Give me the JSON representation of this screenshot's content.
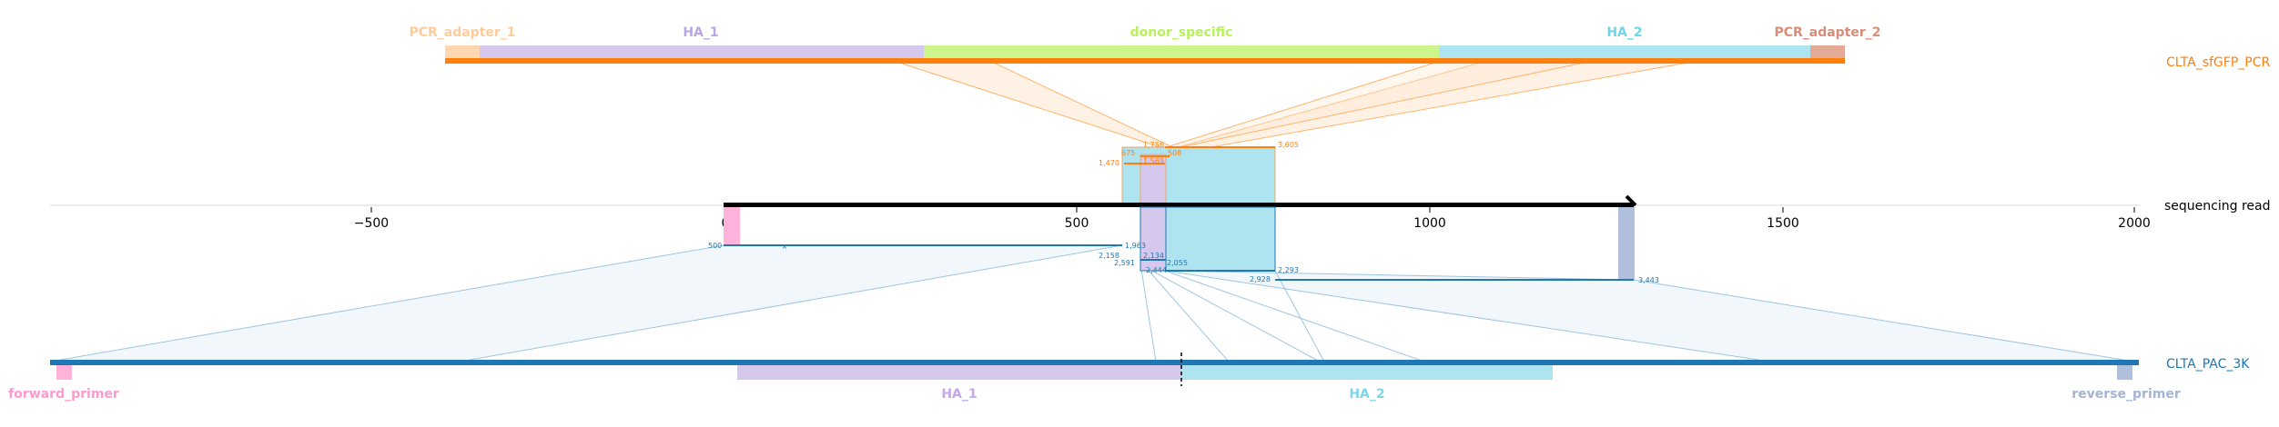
{
  "top_reference": {
    "name": "CLTA_sfGFP_PCR",
    "color": "#ff7f0e",
    "features": [
      {
        "label": "PCR_adapter_1",
        "color": "#ffd7b0",
        "text_color": "#ffcc99"
      },
      {
        "label": "HA_1",
        "color": "#d6c8ec",
        "text_color": "#b9a5e6"
      },
      {
        "label": "donor_specific",
        "color": "#ccf58c",
        "text_color": "#b7f25c"
      },
      {
        "label": "HA_2",
        "color": "#aee4f0",
        "text_color": "#6fd3ea"
      },
      {
        "label": "PCR_adapter_2",
        "color": "#e4aa96",
        "text_color": "#d98c77"
      }
    ]
  },
  "read": {
    "name": "sequencing read",
    "axis_ticks": [
      "−500",
      "0",
      "500",
      "1000",
      "1500",
      "2000"
    ]
  },
  "bottom_reference": {
    "name": "CLTA_PAC_3K",
    "color": "#1f77b4",
    "features": [
      {
        "label": "forward_primer",
        "color": "#ffb3da",
        "text_color": "#ff99cc"
      },
      {
        "label": "HA_1",
        "color": "#d6c8ec",
        "text_color": "#c2a8e8"
      },
      {
        "label": "HA_2",
        "color": "#aee4f0",
        "text_color": "#7fd5ea"
      },
      {
        "label": "reverse_primer",
        "color": "#b0c0dc",
        "text_color": "#a3b4d6"
      }
    ]
  },
  "alignment_labels": {
    "top": [
      "1,756",
      "675",
      "508",
      "3,605",
      "1,470",
      "1,569"
    ],
    "bottom": [
      "500",
      "1,963",
      "2,158",
      "2,134",
      "2,591",
      "2,444",
      "2,055",
      "2,293",
      "2,928",
      "3,443"
    ]
  }
}
